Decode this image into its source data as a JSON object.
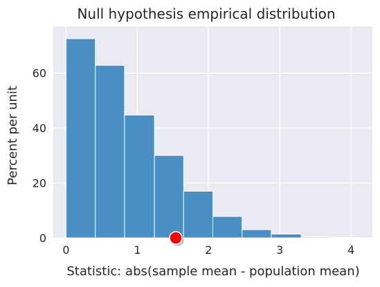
{
  "chart_data": {
    "type": "bar",
    "title": "Null hypothesis empirical distribution",
    "xlabel": "Statistic: abs(sample mean - population mean)",
    "ylabel": "Percent per unit",
    "xlim": [
      -0.18,
      4.3
    ],
    "ylim": [
      0,
      77
    ],
    "x_ticks": [
      0,
      1,
      2,
      3,
      4
    ],
    "y_ticks": [
      0,
      20,
      40,
      60
    ],
    "grid": true,
    "bins": [
      {
        "x0": 0.0,
        "x1": 0.41,
        "value": 72.5
      },
      {
        "x0": 0.41,
        "x1": 0.82,
        "value": 62.8
      },
      {
        "x0": 0.82,
        "x1": 1.24,
        "value": 44.7
      },
      {
        "x0": 1.24,
        "x1": 1.65,
        "value": 30.0
      },
      {
        "x0": 1.65,
        "x1": 2.06,
        "value": 17.0
      },
      {
        "x0": 2.06,
        "x1": 2.47,
        "value": 7.8
      },
      {
        "x0": 2.47,
        "x1": 2.88,
        "value": 3.0
      },
      {
        "x0": 2.88,
        "x1": 3.3,
        "value": 1.4
      },
      {
        "x0": 3.3,
        "x1": 3.71,
        "value": 0.3
      },
      {
        "x0": 3.71,
        "x1": 4.12,
        "value": 0.1
      }
    ],
    "observed_statistic": 1.54,
    "colors": {
      "plot_background": "#eaeaf2",
      "grid": "#ffffff",
      "bar_fill": "#4a8fc4",
      "bar_edge": "#ffffff",
      "marker_fill": "#ff0000",
      "marker_edge": "#ffffff",
      "text": "#262626"
    }
  }
}
